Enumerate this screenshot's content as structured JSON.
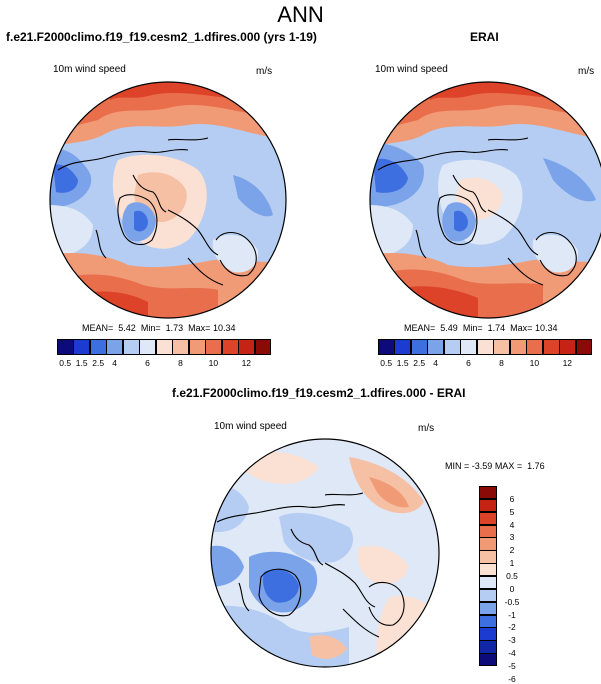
{
  "page_title": "ANN",
  "panels": [
    {
      "case_title": "f.e21.F2000climo.f19_f19.cesm2_1.dfires.000 (yrs 1-19)",
      "var_label": "10m wind speed",
      "units": "m/s",
      "stats": {
        "mean_label": "MEAN=",
        "mean": "5.42",
        "min_label": "Min=",
        "min": "1.73",
        "max_label": "Max=",
        "max": "10.34"
      }
    },
    {
      "case_title": "ERAI",
      "var_label": "10m wind speed",
      "units": "m/s",
      "stats": {
        "mean_label": "MEAN=",
        "mean": "5.49",
        "min_label": "Min=",
        "min": "1.74",
        "max_label": "Max=",
        "max": "10.34"
      }
    }
  ],
  "diff_panel": {
    "case_title": "f.e21.F2000climo.f19_f19.cesm2_1.dfires.000 - ERAI",
    "var_label": "10m wind speed",
    "units": "m/s",
    "stats": {
      "min_label": "MIN =",
      "min": "-3.59",
      "max_label": "MAX =",
      "max": "1.76"
    }
  },
  "colorbar_abs": {
    "colors": [
      "#0d0a7a",
      "#1c3bd0",
      "#3d6fe0",
      "#7aa3ea",
      "#b5cdf2",
      "#dfe8f6",
      "#fbe1d4",
      "#f6c0a4",
      "#f09a76",
      "#e86e4c",
      "#dd4328",
      "#c52414",
      "#8a0a08"
    ],
    "labels": [
      "0.5",
      "1.5",
      "2.5",
      "4",
      "6",
      "8",
      "10",
      "12"
    ]
  },
  "colorbar_diff": {
    "colors_top_to_bottom": [
      "#8a0a08",
      "#c52414",
      "#dd4328",
      "#e86e4c",
      "#f09a76",
      "#f6c0a4",
      "#fbe1d4",
      "#dfe8f6",
      "#b5cdf2",
      "#7aa3ea",
      "#3d6fe0",
      "#1c3bd0",
      "#1227a8",
      "#0d0a7a"
    ],
    "labels_top_to_bottom": [
      "6",
      "5",
      "4",
      "3",
      "2",
      "1",
      "0.5",
      "0",
      "-0.5",
      "-1",
      "-2",
      "-3",
      "-4",
      "-5",
      "-6"
    ]
  }
}
